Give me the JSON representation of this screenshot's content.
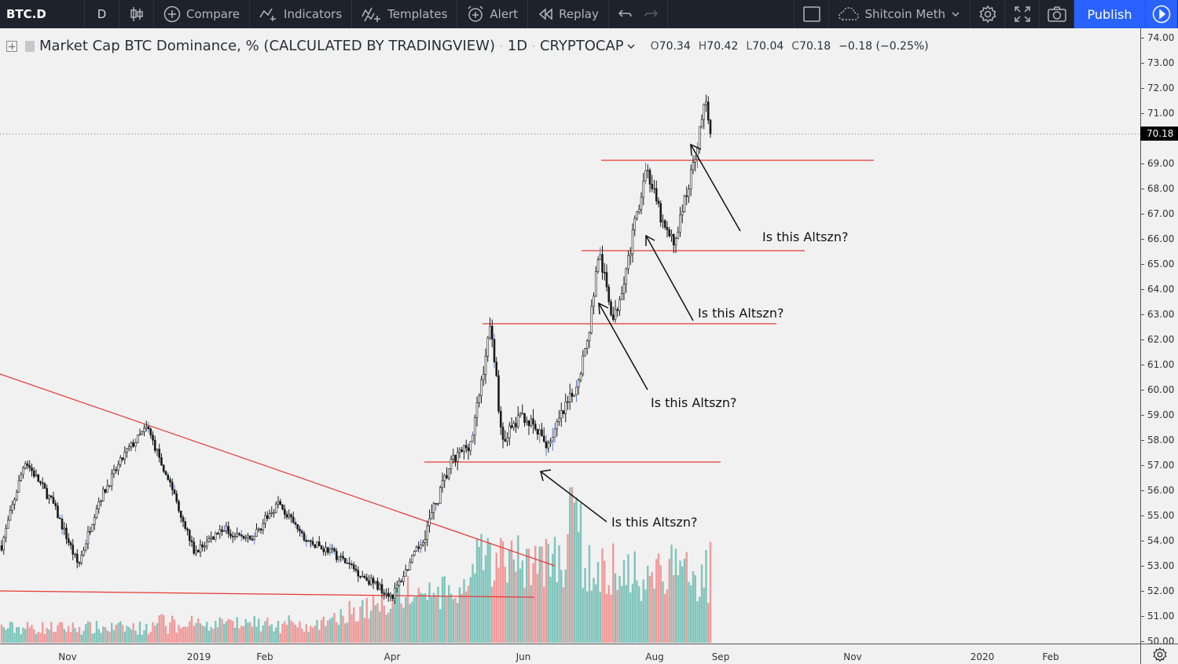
{
  "toolbar": {
    "symbol": "BTC.D",
    "interval": "D",
    "compare_label": "Compare",
    "indicators_label": "Indicators",
    "templates_label": "Templates",
    "alert_label": "Alert",
    "replay_label": "Replay",
    "layout_name": "Shitcoin Meth",
    "publish_label": "Publish"
  },
  "legend": {
    "title": "Market Cap BTC Dominance, % (CALCULATED BY TRADINGVIEW)",
    "interval": "1D",
    "exchange": "CRYPTOCAP",
    "open": "70.34",
    "high": "70.42",
    "low": "70.04",
    "close": "70.18",
    "change": "−0.18 (−0.25%)"
  },
  "price_axis": {
    "labels": [
      "74.00",
      "73.00",
      "72.00",
      "71.00",
      "69.00",
      "68.00",
      "67.00",
      "66.00",
      "65.00",
      "64.00",
      "63.00",
      "62.00",
      "61.00",
      "60.00",
      "59.00",
      "58.00",
      "57.00",
      "56.00",
      "55.00",
      "54.00",
      "53.00",
      "52.00",
      "51.00",
      "50.00"
    ],
    "current": "70.18"
  },
  "time_axis": {
    "labels": [
      "Nov",
      "2019",
      "Feb",
      "Apr",
      "Jun",
      "Aug",
      "Sep",
      "Nov",
      "2020",
      "Feb"
    ]
  },
  "annotations": {
    "a1": "Is this Altszn?",
    "a2": "Is this Altszn?",
    "a3": "Is this Altszn?",
    "a4": "Is this Altszn?"
  },
  "colors": {
    "candle": "#1a1a1a",
    "wick_blue": "#5b7bd5",
    "drawing_red": "#e53935",
    "volume_up": "#7fc4bb",
    "volume_down": "#ef9a9a",
    "toolbar_bg": "#1e222d",
    "publish_blue": "#2962ff"
  },
  "chart_data": {
    "type": "candlestick",
    "symbol": "BTC.D",
    "ylim": [
      50,
      74
    ],
    "x_range": [
      "2018-10",
      "2020-03"
    ],
    "last_close": 70.18,
    "path": [
      [
        "2018-10-01",
        53.8
      ],
      [
        "2018-10-12",
        57.2
      ],
      [
        "2018-10-25",
        55.5
      ],
      [
        "2018-11-06",
        53.0
      ],
      [
        "2018-11-15",
        55.5
      ],
      [
        "2018-11-28",
        57.5
      ],
      [
        "2018-12-08",
        58.5
      ],
      [
        "2018-12-20",
        56.0
      ],
      [
        "2018-12-30",
        53.5
      ],
      [
        "2019-01-12",
        54.5
      ],
      [
        "2019-01-25",
        54.0
      ],
      [
        "2019-02-07",
        55.5
      ],
      [
        "2019-02-20",
        54.0
      ],
      [
        "2019-03-05",
        53.5
      ],
      [
        "2019-03-20",
        52.5
      ],
      [
        "2019-04-01",
        51.8
      ],
      [
        "2019-04-15",
        54.0
      ],
      [
        "2019-04-28",
        57.0
      ],
      [
        "2019-05-08",
        58.0
      ],
      [
        "2019-05-17",
        62.7
      ],
      [
        "2019-05-22",
        58.0
      ],
      [
        "2019-06-01",
        59.0
      ],
      [
        "2019-06-12",
        57.8
      ],
      [
        "2019-06-25",
        60.0
      ],
      [
        "2019-07-01",
        62.0
      ],
      [
        "2019-07-06",
        65.5
      ],
      [
        "2019-07-13",
        62.7
      ],
      [
        "2019-07-20",
        65.3
      ],
      [
        "2019-07-28",
        68.9
      ],
      [
        "2019-08-05",
        66.5
      ],
      [
        "2019-08-10",
        65.8
      ],
      [
        "2019-08-18",
        68.5
      ],
      [
        "2019-08-25",
        71.5
      ],
      [
        "2019-08-28",
        70.18
      ]
    ]
  }
}
